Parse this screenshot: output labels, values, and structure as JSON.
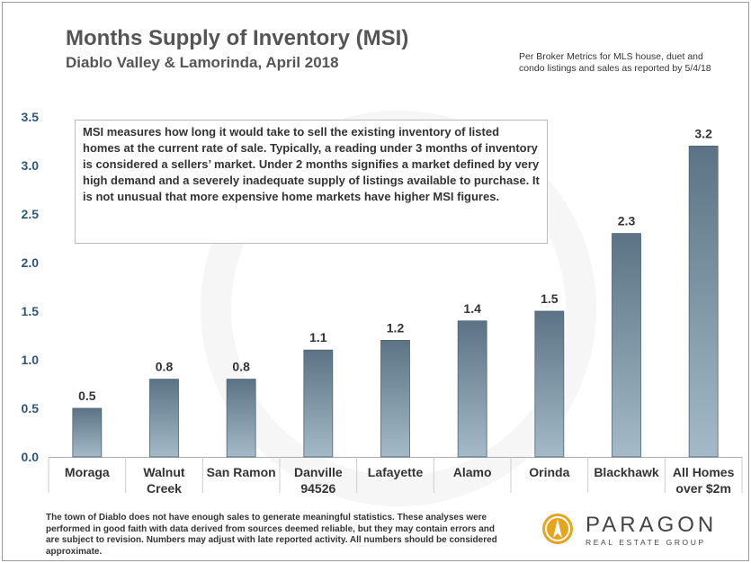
{
  "header": {
    "title": "Months Supply of Inventory (MSI)",
    "subtitle": "Diablo Valley & Lamorinda, April 2018",
    "source_note": "Per Broker Metrics for MLS house, duet and condo listings and sales as reported by 5/4/18"
  },
  "note": "MSI measures how long it would take to sell the existing inventory of listed homes at the current rate of sale.  Typically, a reading under 3 months of inventory is considered a sellers’ market.  Under 2 months signifies a market defined by very high demand and a severely inadequate supply of listings available to purchase.  It is not unusual that more expensive home markets have higher MSI figures.",
  "footer": "The town of Diablo does not have enough sales to generate meaningful statistics. These analyses were performed in good faith with data derived from sources deemed reliable, but they may contain errors and are subject to revision.  Numbers may adjust with late reported activity. All numbers should be considered approximate.",
  "logo": {
    "name": "PARAGON",
    "tagline": "REAL ESTATE GROUP"
  },
  "colors": {
    "bar_top": "#5b7384",
    "bar_bottom": "#a4bac8",
    "axis_text": "#2e5778",
    "label_text": "#333333",
    "logo_accent": "#e8a31c"
  },
  "chart_data": {
    "type": "bar",
    "title": "Months Supply of Inventory (MSI)",
    "xlabel": "",
    "ylabel": "",
    "ylim": [
      0,
      3.5
    ],
    "yticks": [
      "0.0",
      "0.5",
      "1.0",
      "1.5",
      "2.0",
      "2.5",
      "3.0",
      "3.5"
    ],
    "grid": false,
    "categories": [
      [
        "Moraga"
      ],
      [
        "Walnut",
        "Creek"
      ],
      [
        "San Ramon"
      ],
      [
        "Danville",
        "94526"
      ],
      [
        "Lafayette"
      ],
      [
        "Alamo"
      ],
      [
        "Orinda"
      ],
      [
        "Blackhawk"
      ],
      [
        "All Homes",
        "over $2m"
      ]
    ],
    "values": [
      0.5,
      0.8,
      0.8,
      1.1,
      1.2,
      1.4,
      1.5,
      2.3,
      3.2
    ],
    "value_labels": [
      "0.5",
      "0.8",
      "0.8",
      "1.1",
      "1.2",
      "1.4",
      "1.5",
      "2.3",
      "3.2"
    ]
  }
}
